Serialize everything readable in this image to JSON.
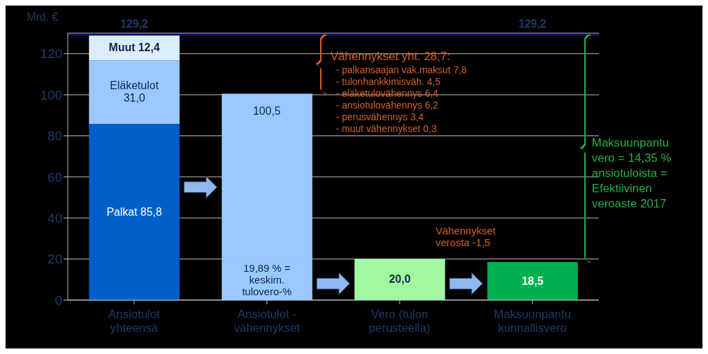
{
  "chart_data": {
    "type": "bar",
    "stacked": true,
    "ylabel": "Mrd. €",
    "categories": [
      "Ansiotulot yhteensä",
      "Ansiotulot - vähennykset",
      "Vero (tulon perusteella)",
      "Maksuunpantu kunnallisvero"
    ],
    "series": [
      {
        "colors": [
          "#0060c8",
          "#99c9ff",
          "#a0f8a0",
          "#00b050"
        ],
        "values": [
          85.8,
          20.0,
          20.0,
          18.5
        ],
        "value_labels": [
          "Palkat 85,8",
          null,
          "20,0",
          "18,5"
        ]
      },
      {
        "colors": [
          "#99c9ff",
          "#99c9ff",
          null,
          null
        ],
        "values": [
          31.0,
          80.5,
          null,
          null
        ],
        "value_labels": [
          "Eläketulot 31,0",
          null,
          null,
          null
        ]
      },
      {
        "colors": [
          "#dbeeff",
          null,
          null,
          null
        ],
        "values": [
          12.4,
          null,
          null,
          null
        ],
        "value_labels": [
          "Muut 12,4",
          null,
          null,
          null
        ]
      }
    ],
    "ylim": [
      0,
      130
    ],
    "yticks": [
      0,
      20,
      40,
      60,
      80,
      100,
      120
    ],
    "grid": "y",
    "ref_lines": [
      {
        "axis": "y",
        "value": 129.2,
        "label": "129,2",
        "color": "#1010a0"
      }
    ],
    "annotations": [
      {
        "text": "129,2",
        "y": 129.2
      },
      "Vähennykset yht. 28,7:",
      "- palkansaajan vak.maksut 7,8",
      "- tulonhankkimisväh. 4,5",
      "- eläketulovähennys 6,4",
      "- ansiotulovähennys 6,2",
      "- perusvähennys 3,4",
      "- muut vähennykset 0,3",
      "Vähennykset verosta -1,5",
      "Maksuunpantu vero = 14,35 % ansiotuloista = Efektiivinen veroaste 2017",
      {
        "text": "100,5",
        "x": "Ansiotulot - vähennykset",
        "y": 100.5
      },
      {
        "text": "19,89 % = keskim. tulovero-%",
        "x": "Ansiotulot - vähennykset",
        "y": 20.0
      }
    ]
  }
}
